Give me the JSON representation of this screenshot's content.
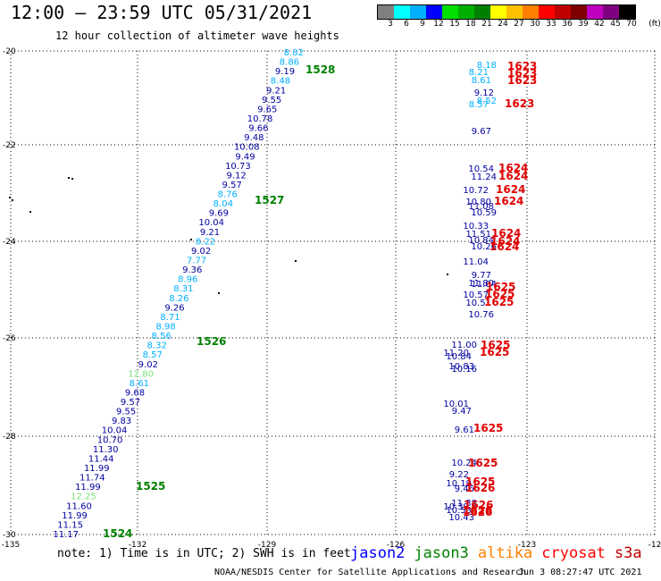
{
  "header": {
    "title": "12:00 – 23:59 UTC 05/31/2021",
    "subtitle": "12 hour collection of altimeter wave heights"
  },
  "legend": {
    "ticks": [
      "3",
      "6",
      "9",
      "12",
      "15",
      "18",
      "21",
      "24",
      "27",
      "30",
      "33",
      "36",
      "39",
      "42",
      "45",
      "70"
    ],
    "unit": "(ft)",
    "colors": [
      "#808080",
      "#00ffff",
      "#00b0ff",
      "#0000ff",
      "#00e000",
      "#00b000",
      "#008000",
      "#ffff00",
      "#ffc000",
      "#ff8000",
      "#ff0000",
      "#c00000",
      "#800000",
      "#c000c0",
      "#800080",
      "#000000"
    ]
  },
  "axes": {
    "lon_labels": [
      "-135",
      "-132",
      "-129",
      "-126",
      "-123",
      "-12"
    ],
    "lat_labels": [
      "-20",
      "-22",
      "-24",
      "-26",
      "-28",
      "-30"
    ]
  },
  "track_a": {
    "points": [
      {
        "v": "8.82",
        "c": "#00b0ff"
      },
      {
        "v": "8.86",
        "c": "#00b0ff"
      },
      {
        "v": "9.19",
        "c": "#0000a0"
      },
      {
        "v": "8.48",
        "c": "#00b0ff"
      },
      {
        "v": "9.21",
        "c": "#0000a0"
      },
      {
        "v": "9.55",
        "c": "#0000a0"
      },
      {
        "v": "9.65",
        "c": "#0000a0"
      },
      {
        "v": "10.78",
        "c": "#0000a0"
      },
      {
        "v": "9.66",
        "c": "#0000a0"
      },
      {
        "v": "9.48",
        "c": "#0000a0"
      },
      {
        "v": "10.08",
        "c": "#0000a0"
      },
      {
        "v": "9.49",
        "c": "#0000a0"
      },
      {
        "v": "10.73",
        "c": "#0000a0"
      },
      {
        "v": "9.12",
        "c": "#0000a0"
      },
      {
        "v": "9.57",
        "c": "#0000a0"
      },
      {
        "v": "8.76",
        "c": "#00b0ff"
      },
      {
        "v": "8.04",
        "c": "#00b0ff"
      },
      {
        "v": "9.69",
        "c": "#0000a0"
      },
      {
        "v": "10.04",
        "c": "#0000a0"
      },
      {
        "v": "9.21",
        "c": "#0000a0"
      },
      {
        "v": "8.22",
        "c": "#00b0ff"
      },
      {
        "v": "9.02",
        "c": "#0000a0"
      },
      {
        "v": "7.77",
        "c": "#00b0ff"
      },
      {
        "v": "9.36",
        "c": "#0000a0"
      },
      {
        "v": "8.96",
        "c": "#00b0ff"
      },
      {
        "v": "8.31",
        "c": "#00b0ff"
      },
      {
        "v": "8.26",
        "c": "#00b0ff"
      },
      {
        "v": "9.26",
        "c": "#0000a0"
      },
      {
        "v": "8.71",
        "c": "#00b0ff"
      },
      {
        "v": "8.98",
        "c": "#00b0ff"
      },
      {
        "v": "8.56",
        "c": "#00b0ff"
      },
      {
        "v": "8.32",
        "c": "#00b0ff"
      },
      {
        "v": "8.57",
        "c": "#00b0ff"
      },
      {
        "v": "9.02",
        "c": "#0000a0"
      },
      {
        "v": "12.80",
        "c": "#7ce07c"
      },
      {
        "v": "8.61",
        "c": "#00b0ff"
      },
      {
        "v": "9.68",
        "c": "#0000a0"
      },
      {
        "v": "9.57",
        "c": "#0000a0"
      },
      {
        "v": "9.55",
        "c": "#0000a0"
      },
      {
        "v": "9.83",
        "c": "#0000a0"
      },
      {
        "v": "10.04",
        "c": "#0000a0"
      },
      {
        "v": "10.70",
        "c": "#0000a0"
      },
      {
        "v": "11.30",
        "c": "#0000a0"
      },
      {
        "v": "11.44",
        "c": "#0000a0"
      },
      {
        "v": "11.99",
        "c": "#0000a0"
      },
      {
        "v": "11.74",
        "c": "#0000a0"
      },
      {
        "v": "11.99",
        "c": "#0000a0"
      },
      {
        "v": "12.25",
        "c": "#7ce07c"
      },
      {
        "v": "11.60",
        "c": "#0000a0"
      },
      {
        "v": "11.99",
        "c": "#0000a0"
      },
      {
        "v": "11.15",
        "c": "#0000a0"
      },
      {
        "v": "11.17",
        "c": "#0000a0"
      }
    ],
    "times": [
      "1528",
      "1527",
      "1526",
      "1525",
      "1524"
    ]
  },
  "track_b": {
    "points": [
      {
        "v": "8.18",
        "c": "#00b0ff"
      },
      {
        "v": "8.21",
        "c": "#00b0ff"
      },
      {
        "v": "8.61",
        "c": "#00b0ff"
      },
      {
        "v": "9.12",
        "c": "#0000a0"
      },
      {
        "v": "8.52",
        "c": "#00b0ff"
      },
      {
        "v": "8.57",
        "c": "#00b0ff"
      },
      {
        "v": "9.67",
        "c": "#0000a0"
      },
      {
        "v": "10.54",
        "c": "#0000a0"
      },
      {
        "v": "11.24",
        "c": "#0000a0"
      },
      {
        "v": "10.72",
        "c": "#0000a0"
      },
      {
        "v": "10.80",
        "c": "#0000a0"
      },
      {
        "v": "11.08",
        "c": "#0000a0"
      },
      {
        "v": "10.59",
        "c": "#0000a0"
      },
      {
        "v": "10.33",
        "c": "#0000a0"
      },
      {
        "v": "11.51",
        "c": "#0000a0"
      },
      {
        "v": "10.84",
        "c": "#0000a0"
      },
      {
        "v": "10.26",
        "c": "#0000a0"
      },
      {
        "v": "11.04",
        "c": "#0000a0"
      },
      {
        "v": "9.77",
        "c": "#0000a0"
      },
      {
        "v": "11.80",
        "c": "#0000a0"
      },
      {
        "v": "11.04",
        "c": "#0000a0"
      },
      {
        "v": "10.57",
        "c": "#0000a0"
      },
      {
        "v": "10.51",
        "c": "#0000a0"
      },
      {
        "v": "10.76",
        "c": "#0000a0"
      },
      {
        "v": "11.00",
        "c": "#0000a0"
      },
      {
        "v": "11.20",
        "c": "#0000a0"
      },
      {
        "v": "10.84",
        "c": "#0000a0"
      },
      {
        "v": "10.83",
        "c": "#0000a0"
      },
      {
        "v": "10.16",
        "c": "#0000a0"
      },
      {
        "v": "10.01",
        "c": "#0000a0"
      },
      {
        "v": "9.47",
        "c": "#0000a0"
      },
      {
        "v": "9.61",
        "c": "#0000a0"
      },
      {
        "v": "10.24",
        "c": "#0000a0"
      },
      {
        "v": "9.22",
        "c": "#0000a0"
      },
      {
        "v": "10.19",
        "c": "#0000a0"
      },
      {
        "v": "9.46",
        "c": "#0000a0"
      },
      {
        "v": "11.38",
        "c": "#0000a0"
      },
      {
        "v": "10.39",
        "c": "#0000a0"
      },
      {
        "v": "10.53",
        "c": "#0000a0"
      },
      {
        "v": "10.43",
        "c": "#0000a0"
      }
    ],
    "times": [
      "1623",
      "1623",
      "1623",
      "1623",
      "1624",
      "1624",
      "1624",
      "1624",
      "1624",
      "1624",
      "1624",
      "1625",
      "1625",
      "1625",
      "1625",
      "1625",
      "1625",
      "1625",
      "1625",
      "1626",
      "1626",
      "1626",
      "1626"
    ]
  },
  "footer": {
    "note": "note: 1) Time is in UTC; 2) SWH is in feet",
    "satellites": [
      {
        "name": "jason2",
        "color": "#0000ff"
      },
      {
        "name": "jason3",
        "color": "#008000"
      },
      {
        "name": "altika",
        "color": "#ff8000"
      },
      {
        "name": "cryosat",
        "color": "#ff0000"
      },
      {
        "name": "s3a",
        "color": "#c00000"
      }
    ],
    "credit": "NOAA/NESDIS Center for Satellite Applications and Research",
    "date": "Jun 3 08:27:47 UTC 2021"
  }
}
